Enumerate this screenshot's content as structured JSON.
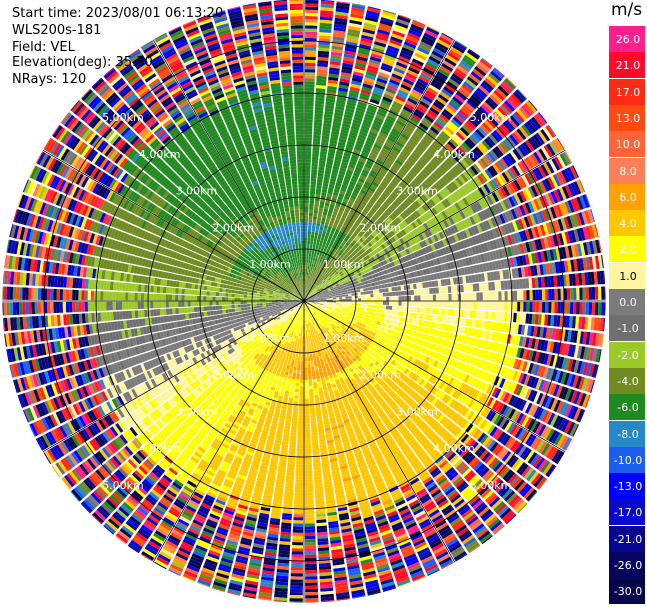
{
  "header": {
    "start_time": "Start time: 2023/08/01 06:13:20",
    "instrument": "WLS200s-181",
    "field": "Field: VEL",
    "elevation": "Elevation(deg): 35.30",
    "nrays": "NRays: 120"
  },
  "chart_data": {
    "type": "heatmap",
    "projection": "polar-ppi",
    "title": "",
    "field": "VEL",
    "units": "m/s",
    "rays": 120,
    "elevation_deg": 35.3,
    "range_rings_km": [
      1.0,
      2.0,
      3.0,
      4.0,
      5.0
    ],
    "ring_labels": [
      "1.00km",
      "2.00km",
      "3.00km",
      "4.00km",
      "5.00km"
    ],
    "max_range_km": 5.8,
    "noise_beyond_km": 4.4,
    "colorbar": {
      "unit": "m/s",
      "ticks": [
        "26.0",
        "21.0",
        "17.0",
        "13.0",
        "10.0",
        "8.0",
        "6.0",
        "4.0",
        "2.0",
        "1.0",
        "0.0",
        "-1.0",
        "-2.0",
        "-4.0",
        "-6.0",
        "-8.0",
        "-10.0",
        "-13.0",
        "-17.0",
        "-21.0",
        "-26.0",
        "-30.0"
      ],
      "colors": [
        "#ff1e8c",
        "#ff0a2a",
        "#ff2a14",
        "#ff4a10",
        "#ff6438",
        "#ff7e5a",
        "#ffa100",
        "#ffc700",
        "#ffff00",
        "#fff5a0",
        "#7b7b7b",
        "#6f6f6f",
        "#9ac928",
        "#6f8b22",
        "#208a20",
        "#2787c7",
        "#1d5ef2",
        "#0000ff",
        "#0a0acd",
        "#07078f",
        "#050560",
        "#05054a"
      ]
    },
    "velocity_pattern": {
      "description_values": "radial velocity (m/s) by azimuth and range",
      "toward_max": -10.0,
      "away_max": 10.0,
      "zero_line_azimuth_deg": [
        75,
        255
      ]
    }
  }
}
